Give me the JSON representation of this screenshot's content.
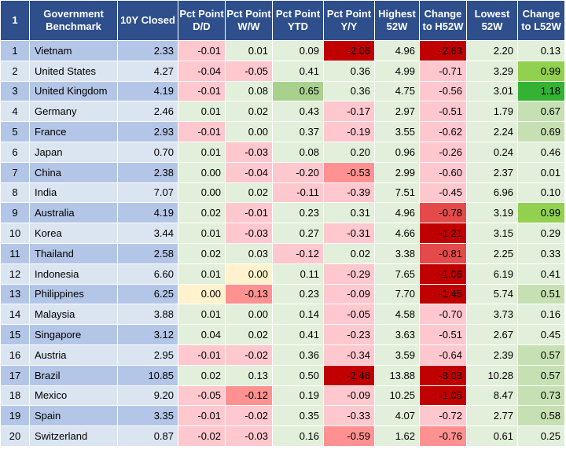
{
  "headers": [
    "1",
    "Government Benchmark",
    "10Y Closed",
    "Pct Point D/D",
    "Pct Point W/W",
    "Pct Point YTD",
    "Pct Point Y/Y",
    "Highest 52W",
    "Change to H52W",
    "Lowest 52W",
    "Change to L52W"
  ],
  "shading_colors": {
    "header": "#2e4f8c",
    "row_odd": "#b4c6e7",
    "row_even": "#dbe5f1",
    "neutral": "#e2efda",
    "red_light": "#ffc7ce",
    "red_mid": "#ff9191",
    "red_strong": "#e44a4a",
    "red_dark": "#c00000",
    "yellow": "#fff2cc",
    "green_light": "#c6e0b4",
    "green_mid": "#a9d18e",
    "green_bright": "#92d050",
    "green_dark": "#33b233"
  },
  "rows": [
    {
      "idx": "1",
      "name": "Vietnam",
      "cells": [
        {
          "v": "2.33",
          "s": "c0"
        },
        {
          "v": "-0.01",
          "s": "p1"
        },
        {
          "v": "0.01",
          "s": "n"
        },
        {
          "v": "0.09",
          "s": "n"
        },
        {
          "v": "-2.06",
          "s": "p4"
        },
        {
          "v": "4.96",
          "s": "n"
        },
        {
          "v": "-2.63",
          "s": "p4"
        },
        {
          "v": "2.20",
          "s": "n"
        },
        {
          "v": "0.13",
          "s": "n"
        }
      ]
    },
    {
      "idx": "2",
      "name": "United States",
      "cells": [
        {
          "v": "4.27",
          "s": "c0"
        },
        {
          "v": "-0.04",
          "s": "p1"
        },
        {
          "v": "-0.05",
          "s": "p1"
        },
        {
          "v": "0.41",
          "s": "n"
        },
        {
          "v": "0.36",
          "s": "n"
        },
        {
          "v": "4.99",
          "s": "n"
        },
        {
          "v": "-0.71",
          "s": "p1"
        },
        {
          "v": "3.29",
          "s": "n"
        },
        {
          "v": "0.99",
          "s": "g3"
        }
      ]
    },
    {
      "idx": "3",
      "name": "United Kingdom",
      "cells": [
        {
          "v": "4.19",
          "s": "c0"
        },
        {
          "v": "-0.01",
          "s": "p1"
        },
        {
          "v": "0.08",
          "s": "n"
        },
        {
          "v": "0.65",
          "s": "g2"
        },
        {
          "v": "0.36",
          "s": "n"
        },
        {
          "v": "4.75",
          "s": "n"
        },
        {
          "v": "-0.56",
          "s": "p1"
        },
        {
          "v": "3.01",
          "s": "n"
        },
        {
          "v": "1.18",
          "s": "g4"
        }
      ]
    },
    {
      "idx": "4",
      "name": "Germany",
      "cells": [
        {
          "v": "2.46",
          "s": "c0"
        },
        {
          "v": "0.01",
          "s": "n"
        },
        {
          "v": "0.02",
          "s": "n"
        },
        {
          "v": "0.43",
          "s": "n"
        },
        {
          "v": "-0.17",
          "s": "p1"
        },
        {
          "v": "2.97",
          "s": "n"
        },
        {
          "v": "-0.51",
          "s": "p1"
        },
        {
          "v": "1.79",
          "s": "n"
        },
        {
          "v": "0.67",
          "s": "g1"
        }
      ]
    },
    {
      "idx": "5",
      "name": "France",
      "cells": [
        {
          "v": "2.93",
          "s": "c0"
        },
        {
          "v": "-0.01",
          "s": "p1"
        },
        {
          "v": "0.00",
          "s": "n"
        },
        {
          "v": "0.37",
          "s": "n"
        },
        {
          "v": "-0.19",
          "s": "p1"
        },
        {
          "v": "3.55",
          "s": "n"
        },
        {
          "v": "-0.62",
          "s": "p1"
        },
        {
          "v": "2.24",
          "s": "n"
        },
        {
          "v": "0.69",
          "s": "g1"
        }
      ]
    },
    {
      "idx": "6",
      "name": "Japan",
      "cells": [
        {
          "v": "0.70",
          "s": "c0"
        },
        {
          "v": "0.01",
          "s": "n"
        },
        {
          "v": "-0.03",
          "s": "p1"
        },
        {
          "v": "0.08",
          "s": "n"
        },
        {
          "v": "0.20",
          "s": "n"
        },
        {
          "v": "0.96",
          "s": "n"
        },
        {
          "v": "-0.26",
          "s": "p1"
        },
        {
          "v": "0.24",
          "s": "n"
        },
        {
          "v": "0.46",
          "s": "n"
        }
      ]
    },
    {
      "idx": "7",
      "name": "China",
      "cells": [
        {
          "v": "2.38",
          "s": "c0"
        },
        {
          "v": "0.00",
          "s": "n"
        },
        {
          "v": "-0.04",
          "s": "p1"
        },
        {
          "v": "-0.20",
          "s": "p1"
        },
        {
          "v": "-0.53",
          "s": "p2"
        },
        {
          "v": "2.99",
          "s": "n"
        },
        {
          "v": "-0.60",
          "s": "p1"
        },
        {
          "v": "2.37",
          "s": "n"
        },
        {
          "v": "0.01",
          "s": "n"
        }
      ]
    },
    {
      "idx": "8",
      "name": "India",
      "cells": [
        {
          "v": "7.07",
          "s": "c0"
        },
        {
          "v": "0.00",
          "s": "n"
        },
        {
          "v": "0.02",
          "s": "n"
        },
        {
          "v": "-0.11",
          "s": "p1"
        },
        {
          "v": "-0.39",
          "s": "p1"
        },
        {
          "v": "7.51",
          "s": "n"
        },
        {
          "v": "-0.45",
          "s": "p1"
        },
        {
          "v": "6.96",
          "s": "n"
        },
        {
          "v": "0.10",
          "s": "n"
        }
      ]
    },
    {
      "idx": "9",
      "name": "Australia",
      "cells": [
        {
          "v": "4.19",
          "s": "c0"
        },
        {
          "v": "0.02",
          "s": "n"
        },
        {
          "v": "-0.01",
          "s": "p1"
        },
        {
          "v": "0.23",
          "s": "n"
        },
        {
          "v": "0.31",
          "s": "n"
        },
        {
          "v": "4.96",
          "s": "n"
        },
        {
          "v": "-0.78",
          "s": "p3"
        },
        {
          "v": "3.19",
          "s": "n"
        },
        {
          "v": "0.99",
          "s": "g3"
        }
      ]
    },
    {
      "idx": "10",
      "name": "Korea",
      "cells": [
        {
          "v": "3.44",
          "s": "c0"
        },
        {
          "v": "0.01",
          "s": "n"
        },
        {
          "v": "-0.03",
          "s": "p1"
        },
        {
          "v": "0.27",
          "s": "n"
        },
        {
          "v": "-0.31",
          "s": "p1"
        },
        {
          "v": "4.66",
          "s": "n"
        },
        {
          "v": "-1.21",
          "s": "p4"
        },
        {
          "v": "3.15",
          "s": "n"
        },
        {
          "v": "0.29",
          "s": "n"
        }
      ]
    },
    {
      "idx": "11",
      "name": "Thailand",
      "cells": [
        {
          "v": "2.58",
          "s": "c0"
        },
        {
          "v": "0.02",
          "s": "n"
        },
        {
          "v": "0.03",
          "s": "n"
        },
        {
          "v": "-0.12",
          "s": "p1"
        },
        {
          "v": "0.02",
          "s": "n"
        },
        {
          "v": "3.38",
          "s": "n"
        },
        {
          "v": "-0.81",
          "s": "p3"
        },
        {
          "v": "2.25",
          "s": "n"
        },
        {
          "v": "0.33",
          "s": "n"
        }
      ]
    },
    {
      "idx": "12",
      "name": "Indonesia",
      "cells": [
        {
          "v": "6.60",
          "s": "c0"
        },
        {
          "v": "0.01",
          "s": "n"
        },
        {
          "v": "0.00",
          "s": "y"
        },
        {
          "v": "0.11",
          "s": "n"
        },
        {
          "v": "-0.29",
          "s": "p1"
        },
        {
          "v": "7.65",
          "s": "n"
        },
        {
          "v": "-1.06",
          "s": "p4"
        },
        {
          "v": "6.19",
          "s": "n"
        },
        {
          "v": "0.41",
          "s": "n"
        }
      ]
    },
    {
      "idx": "13",
      "name": "Philippines",
      "cells": [
        {
          "v": "6.25",
          "s": "c0"
        },
        {
          "v": "0.00",
          "s": "y"
        },
        {
          "v": "-0.13",
          "s": "p2"
        },
        {
          "v": "0.23",
          "s": "n"
        },
        {
          "v": "-0.09",
          "s": "p1"
        },
        {
          "v": "7.70",
          "s": "n"
        },
        {
          "v": "-1.45",
          "s": "p4"
        },
        {
          "v": "5.74",
          "s": "n"
        },
        {
          "v": "0.51",
          "s": "g1"
        }
      ]
    },
    {
      "idx": "14",
      "name": "Malaysia",
      "cells": [
        {
          "v": "3.88",
          "s": "c0"
        },
        {
          "v": "0.01",
          "s": "n"
        },
        {
          "v": "0.00",
          "s": "n"
        },
        {
          "v": "0.14",
          "s": "n"
        },
        {
          "v": "-0.05",
          "s": "p1"
        },
        {
          "v": "4.58",
          "s": "n"
        },
        {
          "v": "-0.70",
          "s": "p1"
        },
        {
          "v": "3.73",
          "s": "n"
        },
        {
          "v": "0.16",
          "s": "n"
        }
      ]
    },
    {
      "idx": "15",
      "name": "Singapore",
      "cells": [
        {
          "v": "3.12",
          "s": "c0"
        },
        {
          "v": "0.04",
          "s": "n"
        },
        {
          "v": "0.02",
          "s": "n"
        },
        {
          "v": "0.41",
          "s": "n"
        },
        {
          "v": "-0.23",
          "s": "p1"
        },
        {
          "v": "3.63",
          "s": "n"
        },
        {
          "v": "-0.51",
          "s": "p1"
        },
        {
          "v": "2.67",
          "s": "n"
        },
        {
          "v": "0.45",
          "s": "n"
        }
      ]
    },
    {
      "idx": "16",
      "name": "Austria",
      "cells": [
        {
          "v": "2.95",
          "s": "c0"
        },
        {
          "v": "-0.01",
          "s": "p1"
        },
        {
          "v": "-0.02",
          "s": "p1"
        },
        {
          "v": "0.36",
          "s": "n"
        },
        {
          "v": "-0.34",
          "s": "p1"
        },
        {
          "v": "3.59",
          "s": "n"
        },
        {
          "v": "-0.64",
          "s": "p1"
        },
        {
          "v": "2.39",
          "s": "n"
        },
        {
          "v": "0.57",
          "s": "g1"
        }
      ]
    },
    {
      "idx": "17",
      "name": "Brazil",
      "cells": [
        {
          "v": "10.85",
          "s": "c0"
        },
        {
          "v": "0.02",
          "s": "n"
        },
        {
          "v": "0.13",
          "s": "n"
        },
        {
          "v": "0.50",
          "s": "n"
        },
        {
          "v": "-2.46",
          "s": "p4"
        },
        {
          "v": "13.88",
          "s": "n"
        },
        {
          "v": "-3.03",
          "s": "p4"
        },
        {
          "v": "10.28",
          "s": "n"
        },
        {
          "v": "0.57",
          "s": "g1"
        }
      ]
    },
    {
      "idx": "18",
      "name": "Mexico",
      "cells": [
        {
          "v": "9.20",
          "s": "c0"
        },
        {
          "v": "-0.05",
          "s": "p1"
        },
        {
          "v": "-0.12",
          "s": "p2"
        },
        {
          "v": "0.19",
          "s": "n"
        },
        {
          "v": "-0.09",
          "s": "p1"
        },
        {
          "v": "10.25",
          "s": "n"
        },
        {
          "v": "-1.05",
          "s": "p4"
        },
        {
          "v": "8.47",
          "s": "n"
        },
        {
          "v": "0.73",
          "s": "g1"
        }
      ]
    },
    {
      "idx": "19",
      "name": "Spain",
      "cells": [
        {
          "v": "3.35",
          "s": "c0"
        },
        {
          "v": "-0.01",
          "s": "p1"
        },
        {
          "v": "-0.02",
          "s": "p1"
        },
        {
          "v": "0.35",
          "s": "n"
        },
        {
          "v": "-0.33",
          "s": "p1"
        },
        {
          "v": "4.07",
          "s": "n"
        },
        {
          "v": "-0.72",
          "s": "p1"
        },
        {
          "v": "2.77",
          "s": "n"
        },
        {
          "v": "0.58",
          "s": "g1"
        }
      ]
    },
    {
      "idx": "20",
      "name": "Switzerland",
      "cells": [
        {
          "v": "0.87",
          "s": "c0"
        },
        {
          "v": "-0.02",
          "s": "p1"
        },
        {
          "v": "-0.03",
          "s": "p1"
        },
        {
          "v": "0.16",
          "s": "n"
        },
        {
          "v": "-0.59",
          "s": "p2"
        },
        {
          "v": "1.62",
          "s": "n"
        },
        {
          "v": "-0.76",
          "s": "p2"
        },
        {
          "v": "0.61",
          "s": "n"
        },
        {
          "v": "0.25",
          "s": "n"
        }
      ]
    }
  ]
}
